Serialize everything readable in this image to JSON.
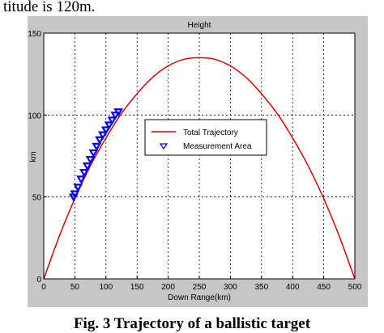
{
  "top_text": "titude is 120m.",
  "caption": "Fig. 3 Trajectory of a ballistic target",
  "chart_data": {
    "type": "line",
    "title": "Height",
    "xlabel": "Down Range(km)",
    "ylabel": "km",
    "xlim": [
      0,
      500
    ],
    "ylim": [
      0,
      150
    ],
    "xticks": [
      0,
      50,
      100,
      150,
      200,
      250,
      300,
      350,
      400,
      450,
      500
    ],
    "yticks": [
      0,
      50,
      100,
      150
    ],
    "grid": true,
    "legend_position": "center-right",
    "series": [
      {
        "name": "Total Trajectory",
        "kind": "line",
        "color": "#e00000",
        "x": [
          0,
          25,
          50,
          75,
          100,
          125,
          150,
          175,
          200,
          225,
          250,
          275,
          300,
          325,
          350,
          375,
          400,
          425,
          450,
          475,
          500
        ],
        "y": [
          0,
          26,
          49,
          69,
          86,
          101,
          113,
          123,
          130,
          134,
          135,
          134,
          130,
          123,
          113,
          101,
          86,
          69,
          49,
          26,
          0
        ]
      },
      {
        "name": "Measurement Area",
        "kind": "marker",
        "marker": "triangle-down",
        "color": "#0000ff",
        "x": [
          48,
          50,
          55,
          60,
          65,
          70,
          75,
          80,
          85,
          90,
          95,
          100,
          105,
          110,
          115,
          120
        ],
        "y": [
          50,
          52,
          56,
          61,
          65,
          69,
          73,
          77,
          81,
          85,
          88,
          91,
          94,
          97,
          100,
          102
        ]
      }
    ]
  }
}
